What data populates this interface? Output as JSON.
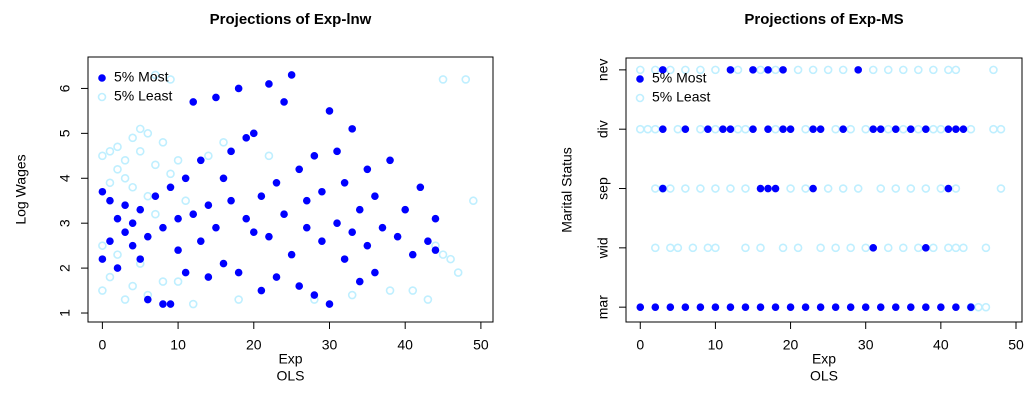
{
  "chart_data": [
    {
      "type": "scatter",
      "title": "Projections of Exp-lnw",
      "x_label": "Exp",
      "x_sublabel": "OLS",
      "y_label": "Log Wages",
      "xlim": [
        -1.9,
        51.6
      ],
      "ylim": [
        0.8,
        6.7
      ],
      "xticks": [
        0,
        10,
        20,
        30,
        40,
        50
      ],
      "yticks": [
        1,
        2,
        3,
        4,
        5,
        6
      ],
      "legend": "top-left",
      "series": [
        {
          "name": "5% Most",
          "color": "#0000ff",
          "marker": "filled",
          "x": [
            0,
            0,
            1,
            1,
            2,
            2,
            3,
            3,
            4,
            4,
            5,
            5,
            6,
            6,
            7,
            8,
            8,
            9,
            9,
            10,
            10,
            11,
            11,
            12,
            12,
            13,
            13,
            14,
            14,
            15,
            15,
            16,
            16,
            17,
            17,
            18,
            18,
            19,
            19,
            20,
            20,
            21,
            21,
            22,
            22,
            23,
            23,
            24,
            24,
            25,
            25,
            26,
            26,
            27,
            27,
            28,
            28,
            29,
            29,
            30,
            30,
            31,
            31,
            32,
            32,
            33,
            33,
            34,
            34,
            35,
            35,
            36,
            36,
            37,
            38,
            39,
            40,
            41,
            42,
            43,
            44,
            44
          ],
          "values": [
            3.7,
            2.2,
            3.5,
            2.6,
            3.1,
            2.0,
            2.8,
            3.4,
            2.5,
            3.0,
            2.2,
            3.3,
            1.3,
            2.7,
            3.6,
            1.2,
            2.9,
            1.2,
            3.8,
            2.4,
            3.1,
            4.0,
            1.9,
            3.2,
            5.7,
            2.6,
            4.4,
            1.8,
            3.4,
            5.8,
            2.9,
            4.0,
            2.1,
            3.5,
            4.6,
            6.0,
            1.9,
            3.1,
            4.9,
            2.8,
            5.0,
            3.6,
            1.5,
            6.1,
            2.7,
            3.9,
            1.8,
            5.7,
            3.2,
            6.3,
            2.3,
            4.2,
            1.6,
            3.5,
            2.9,
            4.5,
            1.4,
            2.6,
            3.7,
            1.2,
            5.5,
            3.0,
            4.6,
            2.2,
            3.9,
            2.8,
            5.1,
            1.7,
            3.3,
            4.2,
            2.5,
            3.6,
            1.9,
            2.9,
            4.4,
            2.7,
            3.3,
            2.3,
            3.8,
            2.6,
            3.1,
            2.4
          ]
        },
        {
          "name": "5% Least",
          "color": "#bfefff",
          "marker": "open",
          "x": [
            0,
            0,
            0,
            1,
            1,
            1,
            2,
            2,
            2,
            3,
            3,
            3,
            4,
            4,
            4,
            5,
            5,
            5,
            6,
            6,
            6,
            7,
            7,
            7,
            8,
            8,
            9,
            9,
            10,
            10,
            11,
            12,
            14,
            16,
            18,
            22,
            28,
            33,
            38,
            41,
            43,
            44,
            45,
            45,
            46,
            47,
            48,
            49
          ],
          "values": [
            1.5,
            2.5,
            4.5,
            1.8,
            3.9,
            4.6,
            2.3,
            4.2,
            4.7,
            1.3,
            4.0,
            4.4,
            1.6,
            3.8,
            4.9,
            2.1,
            4.6,
            5.1,
            1.4,
            3.6,
            5.0,
            3.2,
            4.3,
            6.3,
            1.7,
            4.8,
            4.1,
            6.2,
            1.7,
            4.4,
            3.5,
            1.2,
            4.5,
            4.8,
            1.3,
            4.5,
            1.3,
            1.4,
            1.5,
            1.5,
            1.3,
            2.5,
            2.3,
            6.2,
            2.2,
            1.9,
            6.2,
            3.5
          ]
        }
      ]
    },
    {
      "type": "scatter",
      "title": "Projections of Exp-MS",
      "x_label": "Exp",
      "x_sublabel": "OLS",
      "y_label": "Marital Status",
      "xlim": [
        -1.9,
        50.8
      ],
      "ylim": [
        0.75,
        5.2
      ],
      "xticks": [
        0,
        10,
        20,
        30,
        40,
        50
      ],
      "yticks": [
        {
          "value": 1,
          "label": "mar"
        },
        {
          "value": 2,
          "label": "wid"
        },
        {
          "value": 3,
          "label": "sep"
        },
        {
          "value": 4,
          "label": "div"
        },
        {
          "value": 5,
          "label": "nev"
        }
      ],
      "legend": "top-left",
      "series": [
        {
          "name": "5% Most",
          "color": "#0000ff",
          "marker": "filled",
          "x": [
            3,
            12,
            15,
            17,
            19,
            29,
            3,
            6,
            9,
            11,
            12,
            15,
            17,
            19,
            20,
            23,
            24,
            27,
            31,
            32,
            34,
            36,
            38,
            41,
            42,
            43,
            3,
            16,
            17,
            18,
            23,
            41,
            31,
            38,
            0,
            2,
            4,
            6,
            8,
            10,
            12,
            14,
            16,
            18,
            20,
            22,
            24,
            26,
            28,
            30,
            32,
            34,
            36,
            38,
            40,
            42,
            44
          ],
          "values": [
            5,
            5,
            5,
            5,
            5,
            5,
            4,
            4,
            4,
            4,
            4,
            4,
            4,
            4,
            4,
            4,
            4,
            4,
            4,
            4,
            4,
            4,
            4,
            4,
            4,
            4,
            3,
            3,
            3,
            3,
            3,
            3,
            2,
            2,
            1,
            1,
            1,
            1,
            1,
            1,
            1,
            1,
            1,
            1,
            1,
            1,
            1,
            1,
            1,
            1,
            1,
            1,
            1,
            1,
            1,
            1,
            1
          ]
        },
        {
          "name": "5% Least",
          "color": "#bfefff",
          "marker": "open",
          "x": [
            0,
            2,
            4,
            6,
            8,
            10,
            13,
            16,
            18,
            21,
            23,
            25,
            27,
            31,
            33,
            35,
            37,
            39,
            41,
            42,
            47,
            0,
            1,
            2,
            5,
            8,
            10,
            13,
            14,
            18,
            22,
            26,
            28,
            30,
            33,
            35,
            37,
            39,
            40,
            44,
            47,
            48,
            2,
            3,
            4,
            6,
            8,
            10,
            12,
            14,
            20,
            22,
            25,
            27,
            29,
            32,
            34,
            36,
            38,
            40,
            42,
            48,
            2,
            4,
            5,
            7,
            9,
            10,
            14,
            16,
            19,
            21,
            24,
            26,
            28,
            30,
            33,
            35,
            37,
            39,
            41,
            42,
            43,
            46,
            44,
            45,
            46
          ],
          "values": [
            5,
            5,
            5,
            5,
            5,
            5,
            5,
            5,
            5,
            5,
            5,
            5,
            5,
            5,
            5,
            5,
            5,
            5,
            5,
            5,
            5,
            4,
            4,
            4,
            4,
            4,
            4,
            4,
            4,
            4,
            4,
            4,
            4,
            4,
            4,
            4,
            4,
            4,
            4,
            4,
            4,
            4,
            3,
            3,
            3,
            3,
            3,
            3,
            3,
            3,
            3,
            3,
            3,
            3,
            3,
            3,
            3,
            3,
            3,
            3,
            3,
            3,
            2,
            2,
            2,
            2,
            2,
            2,
            2,
            2,
            2,
            2,
            2,
            2,
            2,
            2,
            2,
            2,
            2,
            2,
            2,
            2,
            2,
            2,
            1,
            1,
            1
          ]
        }
      ]
    }
  ]
}
